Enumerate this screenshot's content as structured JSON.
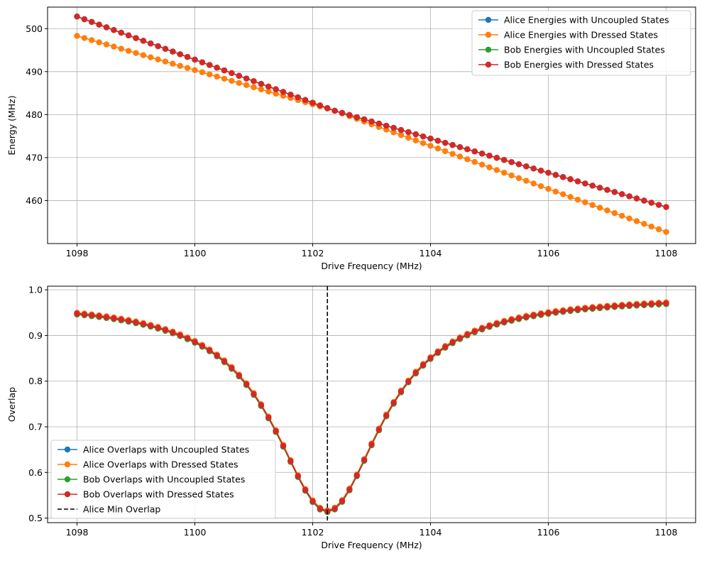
{
  "chart_data": [
    {
      "type": "line",
      "title": "",
      "xlabel": "Drive Frequency (MHz)",
      "ylabel": "Energy (MHz)",
      "xlim": [
        1097.5,
        1108.5
      ],
      "ylim": [
        450.0,
        505.0
      ],
      "xticks": [
        "1098",
        "1100",
        "1102",
        "1104",
        "1106",
        "1108"
      ],
      "yticks": [
        "460",
        "470",
        "480",
        "490",
        "500"
      ],
      "grid": true,
      "legend_position": "top-right",
      "x_start": 1098,
      "x_end": 1108,
      "n_points": 81,
      "series": [
        {
          "name": "Alice Energies with Uncoupled States",
          "color": "#1f77b4",
          "kind": "energy",
          "pattern": "upper-then-lower"
        },
        {
          "name": "Alice Energies with Dressed States",
          "color": "#ff7f0e",
          "kind": "energy",
          "pattern": "lower-then-upper"
        },
        {
          "name": "Bob Energies with Uncoupled States",
          "color": "#2ca02c",
          "kind": "energy",
          "pattern": "upper-then-lower"
        },
        {
          "name": "Bob Energies with Dressed States",
          "color": "#d62728",
          "kind": "energy",
          "pattern": "upper-then-lower"
        }
      ],
      "upper_branch": {
        "start": 502.8,
        "end": 452.7
      },
      "lower_branch": {
        "start": 498.3,
        "end": 458.5
      },
      "crossing_x": 1102.25
    },
    {
      "type": "line",
      "title": "",
      "xlabel": "Drive Frequency (MHz)",
      "ylabel": "Overlap",
      "xlim": [
        1097.5,
        1108.5
      ],
      "ylim": [
        0.49,
        1.008
      ],
      "xticks": [
        "1098",
        "1100",
        "1102",
        "1104",
        "1106",
        "1108"
      ],
      "yticks": [
        "0.5",
        "0.6",
        "0.7",
        "0.8",
        "0.9",
        "1.0"
      ],
      "grid": true,
      "legend_position": "bottom-left",
      "x_start": 1098,
      "x_end": 1108,
      "n_points": 81,
      "series": [
        {
          "name": "Alice Overlaps with Uncoupled States",
          "color": "#1f77b4",
          "kind": "overlap",
          "offset": 0.0
        },
        {
          "name": "Alice Overlaps with Dressed States",
          "color": "#ff7f0e",
          "kind": "overlap",
          "offset": 0.002
        },
        {
          "name": "Bob Overlaps with Uncoupled States",
          "color": "#2ca02c",
          "kind": "overlap",
          "offset": -0.002
        },
        {
          "name": "Bob Overlaps with Dressed States",
          "color": "#d62728",
          "kind": "overlap",
          "offset": 0.0
        }
      ],
      "overlap_min": 0.515,
      "overlap_center": 1102.25,
      "overlap_halfwidth": 1.12,
      "overlap_max_left": 0.978,
      "overlap_max_right": 0.988,
      "vline": {
        "name": "Alice Min Overlap",
        "x": 1102.25,
        "color": "#000000",
        "style": "dashed"
      }
    }
  ]
}
